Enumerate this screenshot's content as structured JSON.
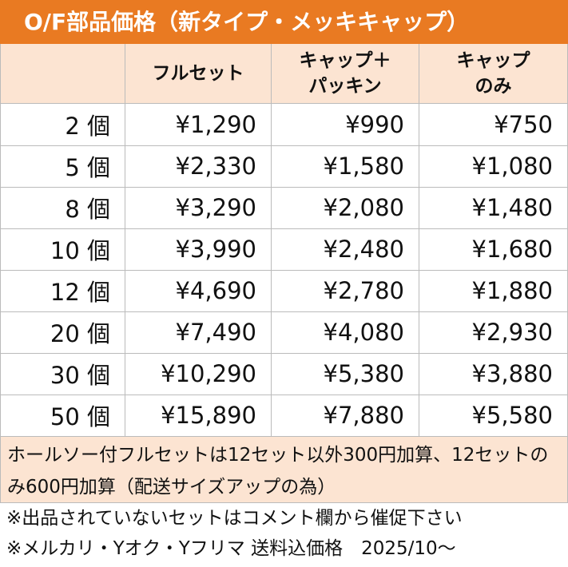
{
  "title": "O/F部品価格（新タイプ・メッキキャップ）",
  "table": {
    "headers": [
      [
        "フルセット"
      ],
      [
        "キャップ＋",
        "パッキン"
      ],
      [
        "キャップ",
        "のみ"
      ]
    ],
    "rows": [
      [
        "2 個",
        "¥1,290",
        "¥990",
        "¥750"
      ],
      [
        "5 個",
        "¥2,330",
        "¥1,580",
        "¥1,080"
      ],
      [
        "8 個",
        "¥3,290",
        "¥2,080",
        "¥1,480"
      ],
      [
        "10 個",
        "¥3,990",
        "¥2,480",
        "¥1,680"
      ],
      [
        "12 個",
        "¥4,690",
        "¥2,780",
        "¥1,880"
      ],
      [
        "20 個",
        "¥7,490",
        "¥4,080",
        "¥2,930"
      ],
      [
        "30 個",
        "¥10,290",
        "¥5,380",
        "¥3,880"
      ],
      [
        "50 個",
        "¥15,890",
        "¥7,880",
        "¥5,580"
      ]
    ],
    "note": "ホールソー付フルセットは12セット以外300円加算、12セットのみ600円加算（配送サイズアップの為）"
  },
  "footer": [
    "※出品されていないセットはコメント欄から催促下さい",
    "※メルカリ・Yオク・Yフリマ 送料込価格　2025/10～"
  ]
}
